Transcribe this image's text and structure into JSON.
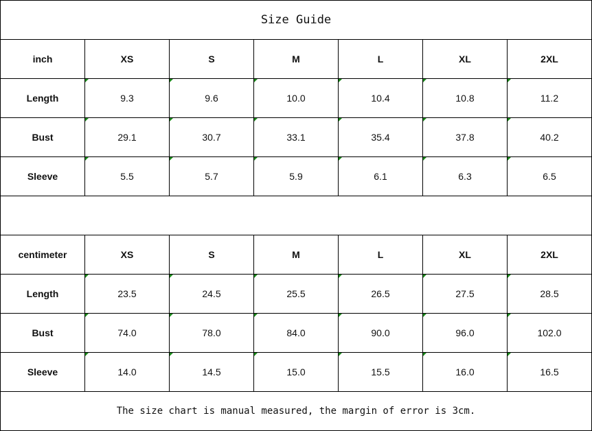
{
  "title": "Size Guide",
  "inch_table": {
    "headers": [
      "inch",
      "XS",
      "S",
      "M",
      "L",
      "XL",
      "2XL"
    ],
    "rows": [
      {
        "label": "Length",
        "values": [
          "9.3",
          "9.6",
          "10.0",
          "10.4",
          "10.8",
          "11.2"
        ]
      },
      {
        "label": "Bust",
        "values": [
          "29.1",
          "30.7",
          "33.1",
          "35.4",
          "37.8",
          "40.2"
        ]
      },
      {
        "label": "Sleeve",
        "values": [
          "5.5",
          "5.7",
          "5.9",
          "6.1",
          "6.3",
          "6.5"
        ]
      }
    ]
  },
  "cm_table": {
    "headers": [
      "centimeter",
      "XS",
      "S",
      "M",
      "L",
      "XL",
      "2XL"
    ],
    "rows": [
      {
        "label": "Length",
        "values": [
          "23.5",
          "24.5",
          "25.5",
          "26.5",
          "27.5",
          "28.5"
        ]
      },
      {
        "label": "Bust",
        "values": [
          "74.0",
          "78.0",
          "84.0",
          "90.0",
          "96.0",
          "102.0"
        ]
      },
      {
        "label": "Sleeve",
        "values": [
          "14.0",
          "14.5",
          "15.0",
          "15.5",
          "16.0",
          "16.5"
        ]
      }
    ]
  },
  "note": "The size chart is manual measured, the margin of error is 3cm.",
  "colors": {
    "error_indicator": "#1a8a1a",
    "border": "#000000"
  }
}
